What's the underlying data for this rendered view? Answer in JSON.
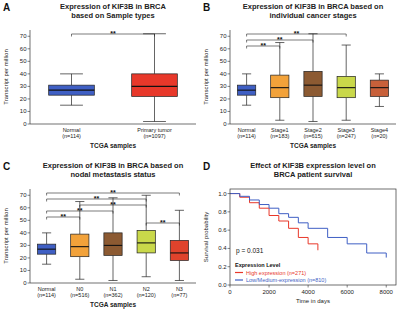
{
  "chart_data": [
    {
      "type": "box",
      "panel": "A",
      "title": "Expression of KIF3B in BRCA\nbased on Sample types",
      "xlabel": "TCGA samples",
      "ylabel": "Transcript per million",
      "categories": [
        "Normal\n(n=114)",
        "Primary tumor\n(n=1097)"
      ],
      "colors": [
        "#3f5fc4",
        "#e8382a"
      ],
      "min": [
        15,
        2
      ],
      "q1": [
        23,
        22
      ],
      "median": [
        27,
        30
      ],
      "q3": [
        31,
        40
      ],
      "max": [
        40,
        72
      ],
      "ylim": [
        0,
        75
      ],
      "yticks": [
        0,
        10,
        20,
        30,
        40,
        50,
        60,
        70
      ],
      "grid": false,
      "annotations": [
        {
          "text": "**",
          "from": 0,
          "to": 1
        }
      ]
    },
    {
      "type": "box",
      "panel": "B",
      "title": "Expression of KIF3B in BRCA based on\nindividual cancer stages",
      "xlabel": "TCGA samples",
      "ylabel": "Transcript per million",
      "categories": [
        "Normal\n(n=114)",
        "Stage1\n(n=183)",
        "Stage2\n(n=615)",
        "Stage3\n(n=247)",
        "Stage4\n(n=20)"
      ],
      "colors": [
        "#3f5fc4",
        "#f2a23a",
        "#8c5a32",
        "#c9d84a",
        "#c8603a"
      ],
      "min": [
        15,
        3,
        2,
        3,
        14
      ],
      "q1": [
        23,
        21,
        22,
        21,
        22
      ],
      "median": [
        27,
        29,
        31,
        29,
        29
      ],
      "q3": [
        31,
        39,
        42,
        38,
        35
      ],
      "max": [
        40,
        65,
        72,
        63,
        40
      ],
      "ylim": [
        0,
        75
      ],
      "yticks": [
        0,
        10,
        20,
        30,
        40,
        50,
        60,
        70
      ],
      "grid": false,
      "annotations": [
        {
          "text": "**",
          "from": 0,
          "to": 3
        },
        {
          "text": "**",
          "from": 0,
          "to": 2
        },
        {
          "text": "**",
          "from": 0,
          "to": 1
        }
      ]
    },
    {
      "type": "box",
      "panel": "C",
      "title": "Expression of KIF3B in BRCA based on\nnodal metastasis status",
      "xlabel": "TCGA samples",
      "ylabel": "Transcript per million",
      "categories": [
        "Normal\n(n=114)",
        "N0\n(n=516)",
        "N1\n(n=362)",
        "N2\n(n=120)",
        "N3\n(n=77)"
      ],
      "colors": [
        "#3f5fc4",
        "#f2a23a",
        "#8c5a32",
        "#c9d84a",
        "#e0432c"
      ],
      "min": [
        15,
        3,
        2,
        5,
        2
      ],
      "q1": [
        23,
        21,
        22,
        24,
        18
      ],
      "median": [
        27,
        29,
        30,
        32,
        24
      ],
      "q3": [
        31,
        39,
        40,
        42,
        34
      ],
      "max": [
        40,
        65,
        68,
        70,
        58
      ],
      "ylim": [
        0,
        75
      ],
      "yticks": [
        0,
        10,
        20,
        30,
        40,
        50,
        60,
        70
      ],
      "grid": false,
      "annotations": [
        {
          "text": "**",
          "from": 0,
          "to": 4
        },
        {
          "text": "**",
          "from": 0,
          "to": 3
        },
        {
          "text": "**",
          "from": 1,
          "to": 3
        },
        {
          "text": "**",
          "from": 0,
          "to": 2
        },
        {
          "text": "**",
          "from": 0,
          "to": 1
        },
        {
          "text": "**",
          "from": 3,
          "to": 4
        }
      ]
    },
    {
      "type": "line",
      "panel": "D",
      "title": "Effect of KIF3B expression level on\nBRCA patient survival",
      "xlabel": "Time in days",
      "ylabel": "Survival probability",
      "line_style": "step",
      "legend": "lower left",
      "legend_title": "Expression Level",
      "series": [
        {
          "name": "High expression (n=271)",
          "color": "#e8382a",
          "x": [
            0,
            500,
            1000,
            1500,
            2000,
            2500,
            3000,
            3500,
            4000,
            4500
          ],
          "values": [
            1,
            0.96,
            0.9,
            0.84,
            0.76,
            0.7,
            0.62,
            0.52,
            0.45,
            0.38
          ]
        },
        {
          "name": "Low/Medium-expression (n=810)",
          "color": "#3f5fc4",
          "x": [
            0,
            500,
            1000,
            1500,
            2000,
            2500,
            3000,
            3500,
            4000,
            5000,
            6000,
            7000,
            8000
          ],
          "values": [
            1,
            0.97,
            0.93,
            0.88,
            0.84,
            0.78,
            0.74,
            0.68,
            0.62,
            0.52,
            0.45,
            0.35,
            0.3
          ]
        }
      ],
      "xlim": [
        0,
        8500
      ],
      "xticks": [
        0,
        2000,
        4000,
        6000,
        8000
      ],
      "ylim": [
        0,
        1.05
      ],
      "yticks": [
        {
          "value": 0,
          "label": "0.0"
        },
        0.2,
        0.4,
        0.6,
        0.8,
        {
          "value": 1,
          "label": "1.0"
        }
      ],
      "grid": false,
      "annotations": [
        {
          "text": "p = 0.031"
        }
      ]
    }
  ]
}
